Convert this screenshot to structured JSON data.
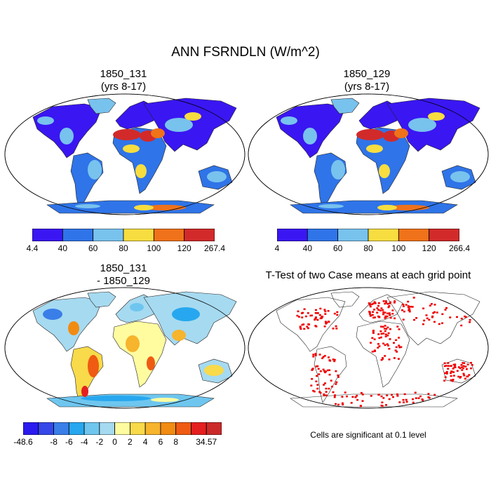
{
  "figure": {
    "title": "ANN FSRNDLN (W/m^2)"
  },
  "panels": [
    {
      "id": "case1",
      "title_line1": "1850_131",
      "title_line2": "(yrs 8-17)",
      "colorbar": {
        "colors": [
          "#3a16f2",
          "#2f74e8",
          "#78c2ee",
          "#f7dd40",
          "#f0721a",
          "#d22a2a"
        ],
        "labels": [
          "4.4",
          "40",
          "60",
          "80",
          "100",
          "120",
          "267.4"
        ]
      }
    },
    {
      "id": "case2",
      "title_line1": "1850_129",
      "title_line2": "(yrs 8-17)",
      "colorbar": {
        "colors": [
          "#3a16f2",
          "#2f74e8",
          "#78c2ee",
          "#f7dd40",
          "#f0721a",
          "#d22a2a"
        ],
        "labels": [
          "4",
          "40",
          "60",
          "80",
          "100",
          "120",
          "266.4"
        ]
      }
    },
    {
      "id": "difference",
      "title_line1": "1850_131",
      "title_line2": "- 1850_129",
      "colorbar": {
        "colors": [
          "#2a1aef",
          "#3547e8",
          "#3a7ee8",
          "#27a7ef",
          "#6ec6ef",
          "#a6daf0",
          "#fffca0",
          "#f8da4a",
          "#f7b42d",
          "#f28b12",
          "#ef5b12",
          "#e51f1f",
          "#cc2a2a"
        ],
        "labels": [
          "-48.6",
          "",
          "-8",
          "-6",
          "-4",
          "-2",
          "0",
          "2",
          "4",
          "6",
          "8",
          "",
          "34.57"
        ]
      }
    },
    {
      "id": "ttest",
      "title_line1": "T-Test of two Case means at each grid point",
      "note": "Cells are significant at 0.1 level",
      "mark_color": "#ee0000"
    }
  ],
  "palette": {
    "low": "#3a16f2",
    "mid_low": "#2f74e8",
    "mid": "#78c2ee",
    "warm": "#f7dd40",
    "hot": "#f0721a",
    "max": "#d22a2a"
  }
}
